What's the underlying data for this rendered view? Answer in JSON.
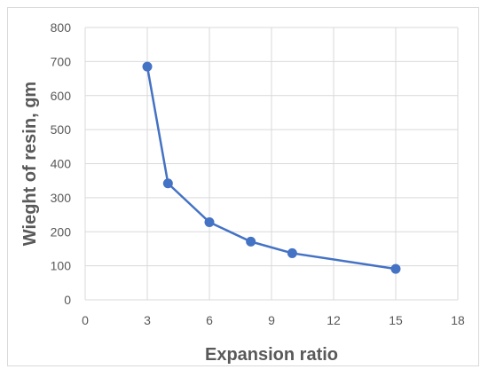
{
  "chart_data": {
    "type": "line",
    "title": "",
    "xlabel": "Expansion ratio",
    "ylabel": "Wieght of resin, gm",
    "xlim": [
      0,
      18
    ],
    "ylim": [
      0,
      800
    ],
    "xticks": [
      0,
      3,
      6,
      9,
      12,
      15,
      18
    ],
    "yticks": [
      0,
      100,
      200,
      300,
      400,
      500,
      600,
      700,
      800
    ],
    "grid": true,
    "legend": "none",
    "series": [
      {
        "color": "#4472c4",
        "x": [
          3,
          4,
          6,
          8,
          10,
          15
        ],
        "y": [
          685,
          342,
          228,
          171,
          137,
          91
        ]
      }
    ]
  }
}
